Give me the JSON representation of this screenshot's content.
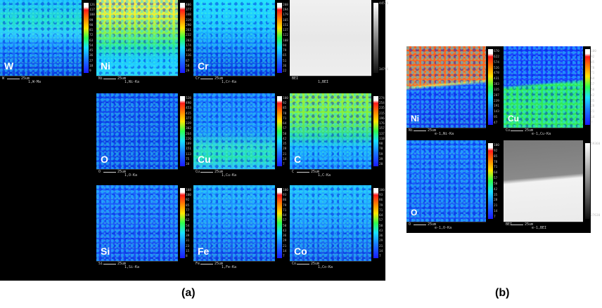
{
  "panel_a": {
    "label": "(a)",
    "maps": [
      {
        "element": "W",
        "caption": "1,W-Ma",
        "scalebar": "25um",
        "ticks": [
          "126",
          "117",
          "108",
          "99",
          "90",
          "81",
          "72",
          "63",
          "54",
          "45",
          "36",
          "27",
          "18",
          "9"
        ],
        "style": "w"
      },
      {
        "element": "Ni",
        "caption": "1,Ni-Ka",
        "scalebar": "25um",
        "ticks": [
          "406",
          "377",
          "348",
          "319",
          "290",
          "261",
          "232",
          "203",
          "174",
          "145",
          "116",
          "87",
          "58",
          "29"
        ],
        "style": "ni"
      },
      {
        "element": "Cr",
        "caption": "1,Cr-Ka",
        "scalebar": "25um",
        "ticks": [
          "208",
          "194",
          "179",
          "165",
          "151",
          "137",
          "122",
          "108",
          "94",
          "79",
          "65",
          "51",
          "36",
          "22"
        ],
        "style": "cr"
      },
      {
        "element": "BEI",
        "caption": "1,BEI",
        "scalebar": "",
        "ticks": [
          "44576",
          "34796"
        ],
        "style": "bei"
      },
      {
        "element": "O",
        "caption": "1,O-Ka",
        "scalebar": "25um",
        "ticks": [
          "528",
          "490",
          "453",
          "415",
          "377",
          "339",
          "302",
          "264",
          "226",
          "189",
          "151",
          "113",
          "75",
          "38"
        ],
        "style": "o"
      },
      {
        "element": "Cu",
        "caption": "1,Cu-Ka",
        "scalebar": "25um",
        "ticks": [
          "100",
          "92",
          "85",
          "78",
          "71",
          "64",
          "57",
          "50",
          "42",
          "35",
          "28",
          "21",
          "14",
          "7"
        ],
        "style": "cu"
      },
      {
        "element": "C",
        "caption": "1,C-Ka",
        "scalebar": "25um",
        "ticks": [
          "274",
          "254",
          "235",
          "215",
          "196",
          "176",
          "157",
          "137",
          "118",
          "98",
          "78",
          "59",
          "39",
          "20"
        ],
        "style": "c"
      },
      {
        "element": "Si",
        "caption": "1,Si-Ka",
        "scalebar": "25um",
        "ticks": [
          "108",
          "100",
          "92",
          "85",
          "77",
          "69",
          "62",
          "54",
          "46",
          "39",
          "31",
          "23",
          "15",
          "8"
        ],
        "style": "si"
      },
      {
        "element": "Fe",
        "caption": "1,Fe-Ka",
        "scalebar": "25um",
        "ticks": [
          "100",
          "93",
          "86",
          "79",
          "71",
          "64",
          "57",
          "50",
          "43",
          "36",
          "29",
          "21",
          "14",
          "7"
        ],
        "style": "fe"
      },
      {
        "element": "Co",
        "caption": "1,Co-Ka",
        "scalebar": "25um",
        "ticks": [
          "100",
          "93",
          "86",
          "79",
          "71",
          "64",
          "57",
          "50",
          "43",
          "36",
          "29",
          "21",
          "14",
          "7"
        ],
        "style": "co"
      }
    ],
    "scalebar_prefix": [
      "W",
      "Ni",
      "Cr",
      "BEI",
      "O",
      "Cu",
      "C",
      "Si",
      "Fe",
      "Co"
    ]
  },
  "panel_b": {
    "label": "(b)",
    "maps": [
      {
        "element": "Ni",
        "caption": "e-1,Ni-Ka",
        "scalebar": "25um",
        "ticks": [
          "670",
          "622",
          "574",
          "526",
          "478",
          "431",
          "383",
          "335",
          "287",
          "239",
          "191",
          "143",
          "95",
          "47"
        ],
        "style": "bni"
      },
      {
        "element": "Cu",
        "caption": "e-1,Cu-Ka",
        "scalebar": "25um",
        "ticks": [
          "100",
          "92",
          "85",
          "78",
          "71",
          "64",
          "57",
          "50",
          "42",
          "35",
          "28",
          "21",
          "14",
          "7"
        ],
        "style": "bcu"
      },
      {
        "element": "O",
        "caption": "e-1,O-Ka",
        "scalebar": "25um",
        "ticks": [
          "100",
          "92",
          "85",
          "78",
          "71",
          "64",
          "57",
          "50",
          "42",
          "35",
          "28",
          "21",
          "14",
          "7"
        ],
        "style": "bo"
      },
      {
        "element": "BEI",
        "caption": "e-1,BEI",
        "scalebar": "25um",
        "ticks": [
          "59360",
          "27630"
        ],
        "style": "bbei"
      }
    ]
  },
  "colors": {
    "panel_bg": "#000000",
    "label_white": "#ffffff"
  }
}
